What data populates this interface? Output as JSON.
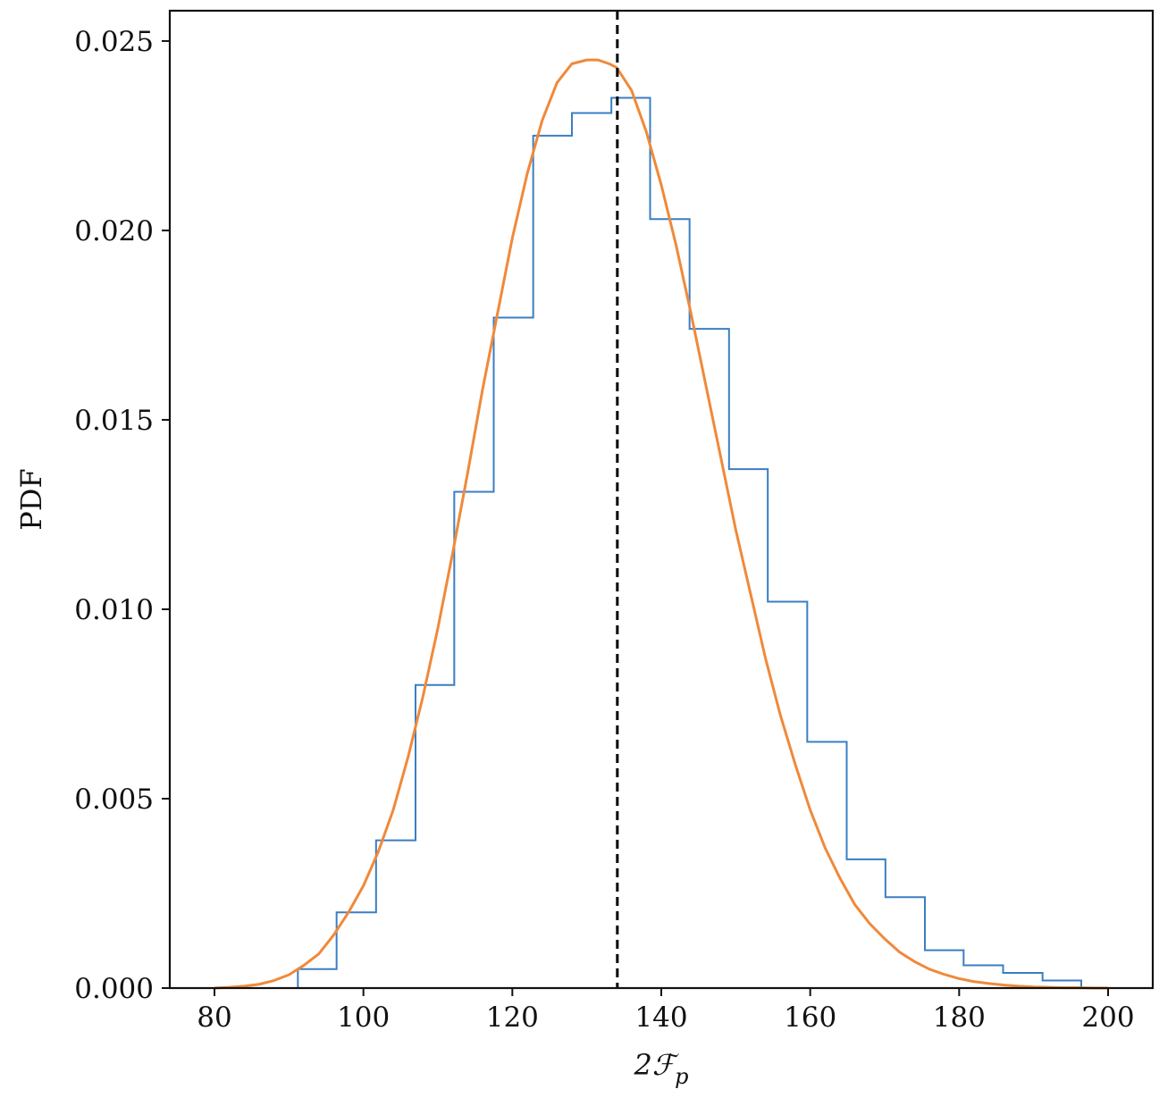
{
  "chart_data": {
    "type": "histogram",
    "title": "",
    "xlabel": "2ℱ",
    "xlabel_sub": "p",
    "ylabel": "PDF",
    "xlim": [
      74,
      206
    ],
    "ylim": [
      0,
      0.0258
    ],
    "xticks": [
      80,
      100,
      120,
      140,
      160,
      180,
      200
    ],
    "xtick_labels": [
      "80",
      "100",
      "120",
      "140",
      "160",
      "180",
      "200"
    ],
    "yticks": [
      0,
      0.005,
      0.01,
      0.015,
      0.02,
      0.025
    ],
    "ytick_labels": [
      "0.000",
      "0.005",
      "0.010",
      "0.015",
      "0.020",
      "0.025"
    ],
    "grid": false,
    "series": [
      {
        "kind": "step-histogram",
        "color": "#3a7ec4",
        "bin_edges": [
          91.2,
          96.4,
          101.7,
          107.0,
          112.2,
          117.5,
          122.8,
          128.0,
          133.3,
          138.5,
          143.8,
          149.1,
          154.3,
          159.6,
          164.9,
          170.1,
          175.4,
          180.6,
          185.9,
          191.2,
          196.4
        ],
        "values": [
          0.0005,
          0.002,
          0.0039,
          0.008,
          0.0131,
          0.0177,
          0.0225,
          0.0231,
          0.0235,
          0.0203,
          0.0174,
          0.0137,
          0.0102,
          0.0065,
          0.0034,
          0.0024,
          0.001,
          0.0006,
          0.0004,
          0.0002
        ]
      },
      {
        "kind": "line",
        "color": "#f0893a",
        "x": [
          80,
          82,
          84,
          86,
          88,
          90,
          92,
          94,
          96,
          98,
          100,
          102,
          104,
          106,
          108,
          110,
          112,
          114,
          116,
          118,
          120,
          122,
          124,
          126,
          128,
          130,
          131.5,
          133,
          134,
          136,
          138,
          140,
          142,
          144,
          146,
          148,
          150,
          152,
          154,
          156,
          158,
          160,
          162,
          164,
          166,
          168,
          170,
          172,
          174,
          176,
          178,
          180,
          182,
          184,
          186,
          188,
          190,
          192,
          194,
          196,
          198,
          200
        ],
        "y": [
          0.0,
          2e-05,
          5e-05,
          0.0001,
          0.0002,
          0.00035,
          0.0006,
          0.0009,
          0.0014,
          0.002,
          0.0027,
          0.0036,
          0.0047,
          0.0061,
          0.0077,
          0.0095,
          0.0115,
          0.0136,
          0.0158,
          0.0178,
          0.0198,
          0.0215,
          0.0229,
          0.0239,
          0.0244,
          0.0245,
          0.0245,
          0.0244,
          0.0243,
          0.0237,
          0.0226,
          0.0212,
          0.0196,
          0.0178,
          0.0159,
          0.014,
          0.0121,
          0.0104,
          0.0087,
          0.0072,
          0.0059,
          0.0047,
          0.0037,
          0.0029,
          0.0022,
          0.0017,
          0.0013,
          0.00095,
          0.0007,
          0.0005,
          0.00036,
          0.00025,
          0.00017,
          0.00012,
          8e-05,
          5e-05,
          3e-05,
          2e-05,
          1e-05,
          1e-05,
          0.0,
          0.0
        ]
      }
    ],
    "vline": {
      "x": 134.1,
      "style": "dashed",
      "color": "#000000"
    }
  }
}
